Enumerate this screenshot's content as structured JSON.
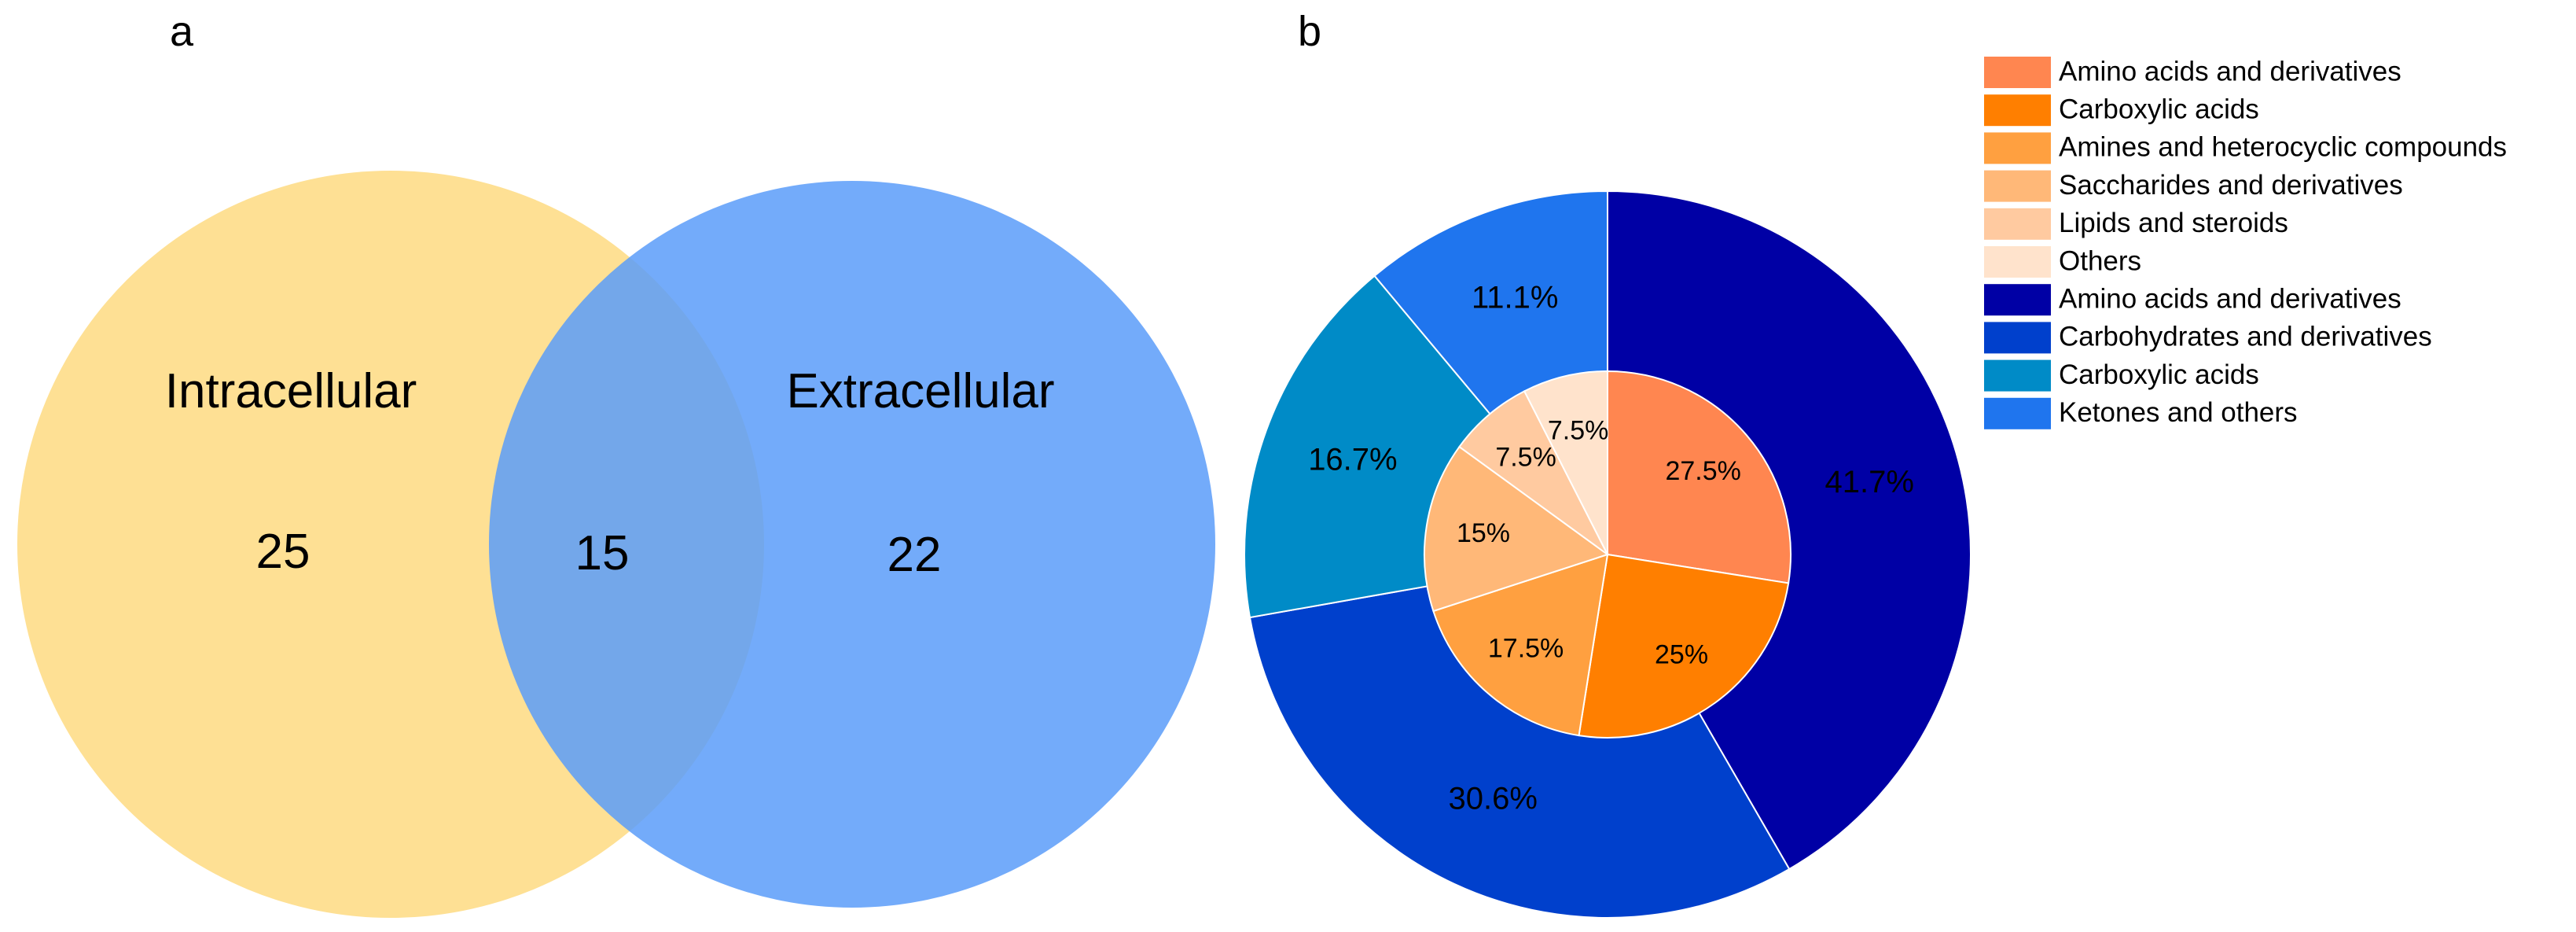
{
  "chart_data": [
    {
      "type": "venn",
      "panel_label": "a",
      "sets": [
        {
          "name": "Intracellular",
          "unique_count": "25",
          "color": "#FEDE8E"
        },
        {
          "name": "Extracellular",
          "unique_count": "22",
          "color": "#5A9CF9"
        }
      ],
      "intersection_count": "15"
    },
    {
      "type": "pie",
      "panel_label": "b",
      "inner_ring": {
        "slices": [
          {
            "name": "Amino acids and derivatives",
            "value": 27.5,
            "label": "27.5%",
            "color": "#FF8650"
          },
          {
            "name": "Carboxylic acids",
            "value": 25,
            "label": "25%",
            "color": "#FF7F00"
          },
          {
            "name": "Amines and heterocyclic compounds",
            "value": 17.5,
            "label": "17.5%",
            "color": "#FFA040"
          },
          {
            "name": "Saccharides and derivatives",
            "value": 15,
            "label": "15%",
            "color": "#FFB878"
          },
          {
            "name": "Lipids and steroids",
            "value": 7.5,
            "label": "7.5%",
            "color": "#FFCAA0"
          },
          {
            "name": "Others",
            "value": 7.5,
            "label": "7.5%",
            "color": "#FFE3CC"
          }
        ]
      },
      "outer_ring": {
        "slices": [
          {
            "name": "Amino acids and derivatives",
            "value": 41.7,
            "label": "41.7%",
            "color": "#0000A5"
          },
          {
            "name": "Carbohydrates and derivatives",
            "value": 30.6,
            "label": "30.6%",
            "color": "#0040CC"
          },
          {
            "name": "Carboxylic acids",
            "value": 16.7,
            "label": "16.7%",
            "color": "#008BC7"
          },
          {
            "name": "Ketones and others",
            "value": 11.1,
            "label": "11.1%",
            "color": "#1F75EE"
          }
        ]
      },
      "legend": [
        {
          "label": "Amino acids and derivatives",
          "color": "#FF8650"
        },
        {
          "label": "Carboxylic acids",
          "color": "#FF7F00"
        },
        {
          "label": "Amines and heterocyclic compounds",
          "color": "#FFA040"
        },
        {
          "label": "Saccharides and derivatives",
          "color": "#FFB878"
        },
        {
          "label": "Lipids and steroids",
          "color": "#FFCAA0"
        },
        {
          "label": "Others",
          "color": "#FFE3CC"
        },
        {
          "label": "Amino acids and derivatives",
          "color": "#0000A5"
        },
        {
          "label": "Carbohydrates and derivatives",
          "color": "#0040CC"
        },
        {
          "label": "Carboxylic acids",
          "color": "#008BC7"
        },
        {
          "label": "Ketones and others",
          "color": "#1F75EE"
        }
      ]
    }
  ]
}
